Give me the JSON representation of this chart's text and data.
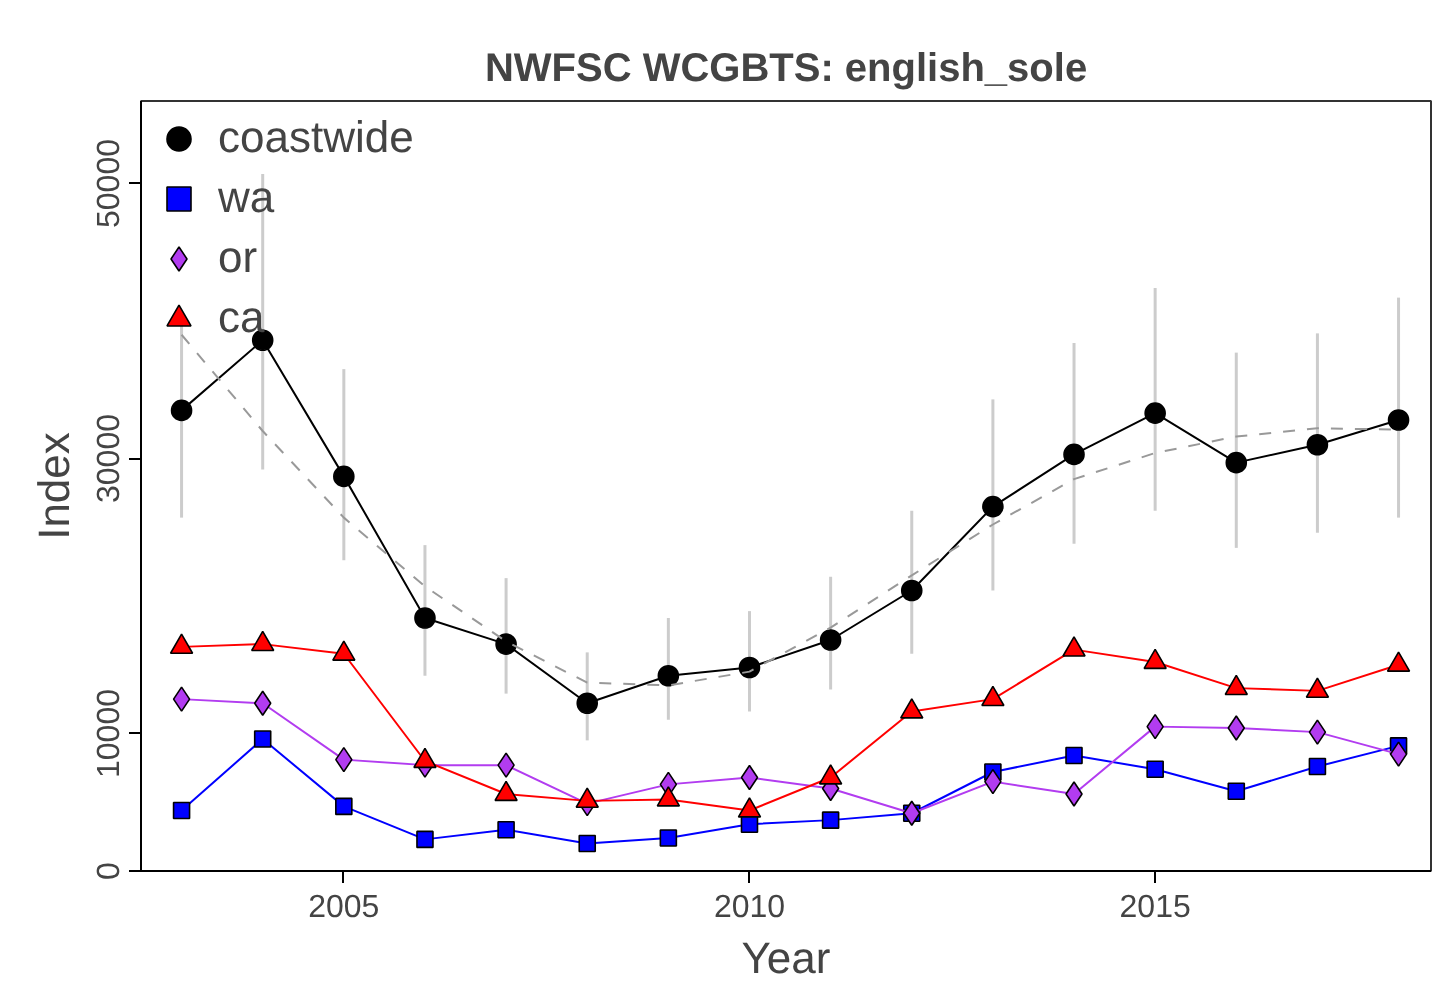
{
  "chart_data": {
    "type": "line",
    "title": "NWFSC WCGBTS: english_sole",
    "xlabel": "Year",
    "ylabel": "Index",
    "x": [
      2003,
      2004,
      2005,
      2006,
      2007,
      2008,
      2009,
      2010,
      2011,
      2012,
      2013,
      2014,
      2015,
      2016,
      2017,
      2018
    ],
    "xlim": [
      2002.5,
      2018.4
    ],
    "xticks": [
      2005,
      2010,
      2015
    ],
    "ylim": [
      0,
      56000
    ],
    "yticks": [
      0,
      10000,
      30000,
      50000
    ],
    "grid": false,
    "legend": "top left",
    "line_style": "solid",
    "series": [
      {
        "name": "coastwide",
        "color": "#000000",
        "marker": "circle",
        "values": [
          33500,
          38600,
          28700,
          18400,
          16500,
          12200,
          14200,
          14800,
          16800,
          20400,
          26500,
          30300,
          33300,
          29700,
          31000,
          32800
        ],
        "errors": [
          [
            25700,
            40200
          ],
          [
            29200,
            50700
          ],
          [
            22600,
            36500
          ],
          [
            14200,
            23700
          ],
          [
            12900,
            21300
          ],
          [
            9500,
            15900
          ],
          [
            11000,
            18400
          ],
          [
            11600,
            18900
          ],
          [
            13200,
            21400
          ],
          [
            15800,
            26200
          ],
          [
            20400,
            34300
          ],
          [
            23800,
            38400
          ],
          [
            26200,
            42400
          ],
          [
            23500,
            37700
          ],
          [
            24600,
            39100
          ],
          [
            25700,
            41700
          ]
        ]
      },
      {
        "name": "wa",
        "color": "#0000ff",
        "marker": "square",
        "values": [
          4400,
          9600,
          4700,
          2300,
          3000,
          2000,
          2400,
          3400,
          3700,
          4200,
          7200,
          8400,
          7400,
          5800,
          7600,
          9100
        ]
      },
      {
        "name": "or",
        "color": "#b23cf0",
        "marker": "diamond",
        "values": [
          12500,
          12200,
          8100,
          7700,
          7700,
          4900,
          6300,
          6800,
          6000,
          4200,
          6500,
          5600,
          10500,
          10400,
          10100,
          8500
        ]
      },
      {
        "name": "ca",
        "color": "#ff0000",
        "marker": "triangle",
        "values": [
          16300,
          16500,
          15800,
          8000,
          5600,
          5100,
          5200,
          4400,
          6800,
          11600,
          12500,
          16100,
          15200,
          13300,
          13100,
          15000
        ]
      },
      {
        "type": "line",
        "color": "#999999",
        "marker": "none",
        "line_style": "dashed",
        "x": [
          2003,
          2004,
          2005,
          2006,
          2007,
          2008,
          2009,
          2010,
          2011,
          2012,
          2013,
          2014,
          2015,
          2016,
          2017,
          2018
        ],
        "values": [
          39000,
          32000,
          25700,
          20700,
          16700,
          13700,
          13500,
          14500,
          17700,
          21500,
          25200,
          28500,
          30400,
          31600,
          32200,
          32100
        ]
      }
    ]
  }
}
